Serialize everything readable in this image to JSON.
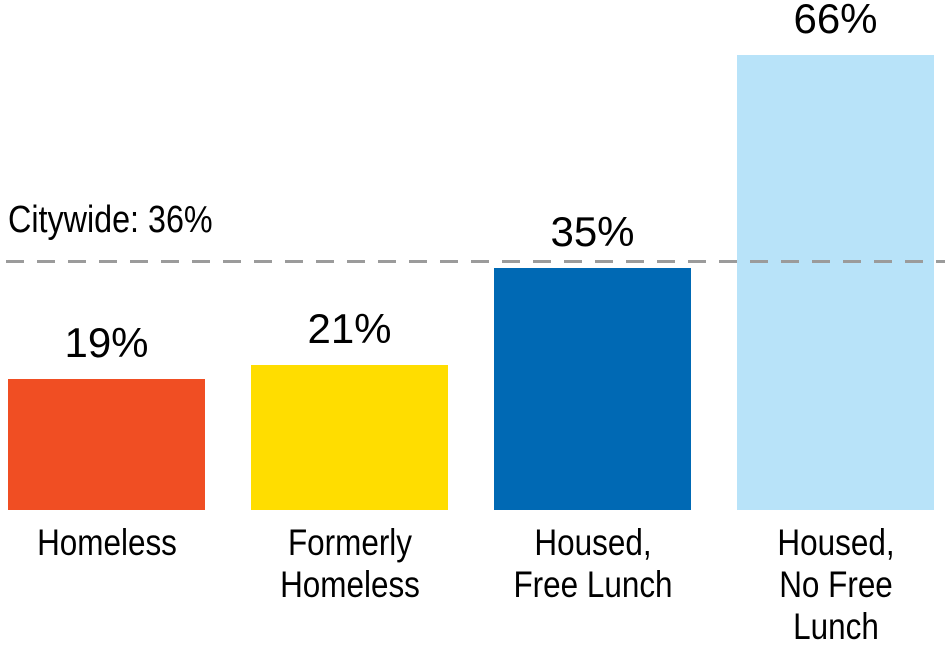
{
  "chart_data": {
    "type": "bar",
    "title": "",
    "xlabel": "",
    "ylabel": "",
    "categories": [
      "Homeless",
      "Formerly Homeless",
      "Housed, Free Lunch",
      "Housed, No Free Lunch"
    ],
    "category_label_lines": [
      [
        "Homeless"
      ],
      [
        "Formerly",
        "Homeless"
      ],
      [
        "Housed,",
        "Free Lunch"
      ],
      [
        "Housed,",
        "No Free",
        "Lunch"
      ]
    ],
    "values": [
      19,
      21,
      35,
      66
    ],
    "value_labels": [
      "19%",
      "21%",
      "35%",
      "66%"
    ],
    "bar_colors": [
      "#F04E23",
      "#FFDD00",
      "#0069B4",
      "#B8E3F9"
    ],
    "reference_line": {
      "label": "Citywide: 36%",
      "value": 36,
      "color": "#9B9B9B"
    },
    "ylim": [
      0,
      74
    ],
    "grid": false,
    "legend": false,
    "text_color": "#000000",
    "background": "#FFFFFF"
  }
}
